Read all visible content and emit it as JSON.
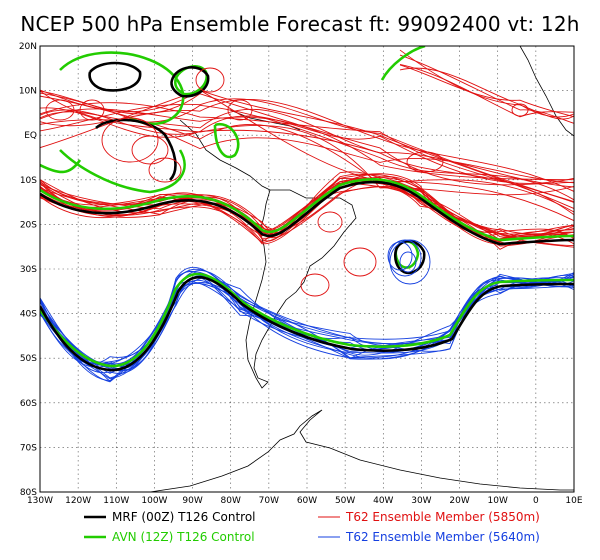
{
  "title": "NCEP 500 hPa Ensemble Forecast  ft: 99092400 vt: 12h",
  "map": {
    "lon_range": [
      -130,
      10
    ],
    "lat_range": [
      -80,
      20
    ],
    "lon_labels": [
      "130W",
      "120W",
      "110W",
      "100W",
      "90W",
      "80W",
      "70W",
      "60W",
      "50W",
      "40W",
      "30W",
      "20W",
      "10W",
      "0",
      "10E"
    ],
    "lat_labels": [
      "20N",
      "10N",
      "EQ",
      "10S",
      "20S",
      "30S",
      "40S",
      "50S",
      "60S",
      "70S",
      "80S"
    ]
  },
  "legend": {
    "mrf": {
      "label": "MRF (00Z) T126 Control",
      "color": "#000000"
    },
    "avn": {
      "label": "AVN (12Z) T126 Control",
      "color": "#22cc00"
    },
    "t62_5850": {
      "label": "T62 Ensemble Member (5850m)",
      "color": "#e01010"
    },
    "t62_5640": {
      "label": "T62 Ensemble Member (5640m)",
      "color": "#1540e0"
    }
  },
  "colors": {
    "red": "#e01010",
    "blue": "#1540e0",
    "green": "#22cc00",
    "black": "#000000",
    "grid": "#555555"
  }
}
